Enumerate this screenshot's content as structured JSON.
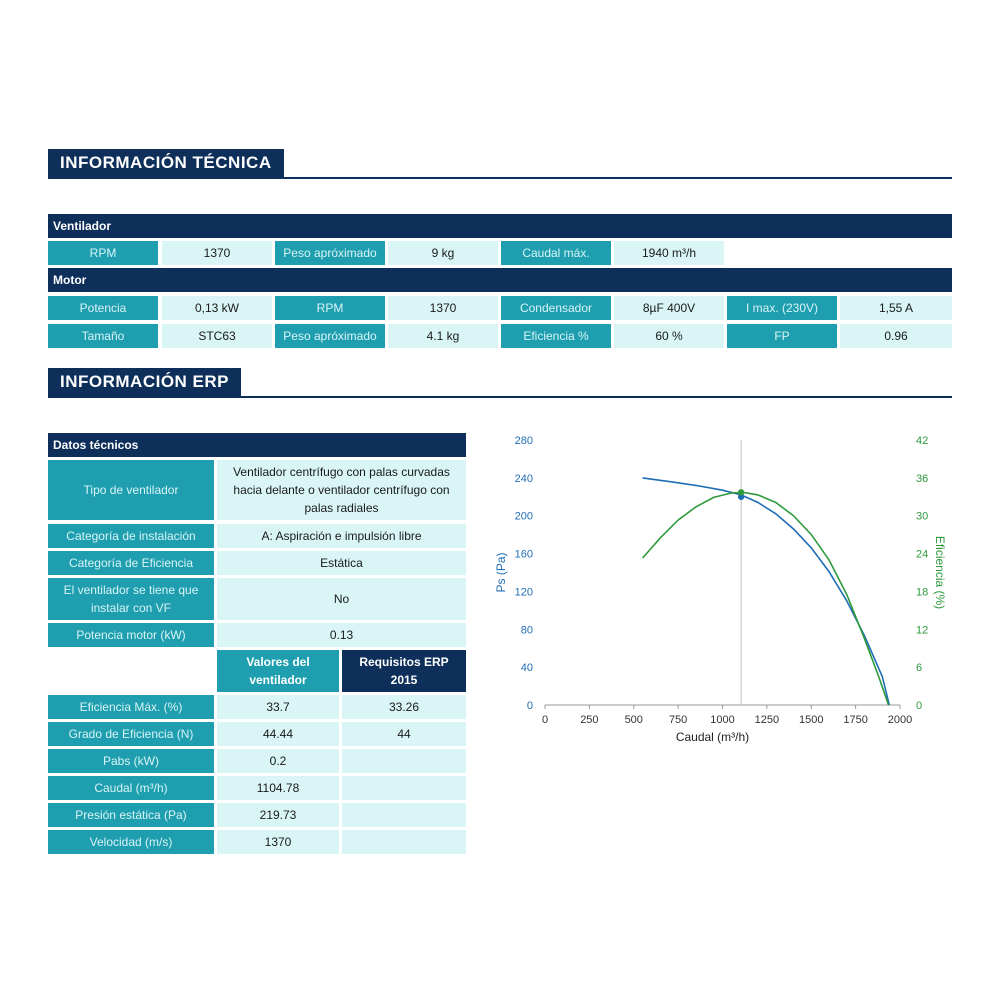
{
  "sections": {
    "tecnica": "INFORMACIÓN TÉCNICA",
    "erp": "INFORMACIÓN ERP"
  },
  "ventilador": {
    "title": "Ventilador",
    "cells": [
      "RPM",
      "1370",
      "Peso apróximado",
      "9 kg",
      "Caudal máx.",
      "1940 m³/h"
    ]
  },
  "motor": {
    "title": "Motor",
    "row1": [
      "Potencia",
      "0,13 kW",
      "RPM",
      "1370",
      "Condensador",
      "8µF 400V",
      "I max. (230V)",
      "1,55 A"
    ],
    "row2": [
      "Tamaño",
      "STC63",
      "Peso apróximado",
      "4.1 kg",
      "Eficiencia %",
      "60 %",
      "FP",
      "0.96"
    ]
  },
  "datos": {
    "title": "Datos técnicos",
    "rows": [
      {
        "label": "Tipo de ventilador",
        "value": "Ventilador centrífugo con palas curvadas hacia delante o ventilador centrífugo con palas radiales"
      },
      {
        "label": "Categoría de instalación",
        "value": "A: Aspiración e impulsión libre"
      },
      {
        "label": "Categoría de Eficiencia",
        "value": "Estática"
      },
      {
        "label": "El ventilador se tiene que instalar con VF",
        "value": "No"
      },
      {
        "label": "Potencia motor (kW)",
        "value": "0.13"
      }
    ],
    "col_valores": "Valores del ventilador",
    "col_requisitos": "Requisitos ERP 2015",
    "metrics": [
      {
        "label": "Eficiencia Máx. (%)",
        "valor": "33.7",
        "req": "33.26"
      },
      {
        "label": "Grado de Eficiencia (N)",
        "valor": "44.44",
        "req": "44"
      },
      {
        "label": "Pabs (kW)",
        "valor": "0.2",
        "req": ""
      },
      {
        "label": "Caudal (m³/h)",
        "valor": "1104.78",
        "req": ""
      },
      {
        "label": "Presión estática (Pa)",
        "valor": "219.73",
        "req": ""
      },
      {
        "label": "Velocidad (m/s)",
        "valor": "1370",
        "req": ""
      }
    ]
  },
  "chart_data": {
    "type": "line",
    "xlabel": "Caudal (m³/h)",
    "ylabel": "Ps (Pa)",
    "y2label": "Eficiencia (%)",
    "xlim": [
      0,
      2000
    ],
    "ylim": [
      0,
      280
    ],
    "y2lim": [
      0,
      42
    ],
    "x_ticks": [
      "0",
      "250",
      "500",
      "750",
      "1000",
      "1250",
      "1500",
      "1750",
      "2000"
    ],
    "y_ticks": [
      "0",
      "40",
      "80",
      "120",
      "160",
      "200",
      "240",
      "280"
    ],
    "y2_ticks": [
      "0",
      "6",
      "12",
      "18",
      "24",
      "30",
      "36",
      "42"
    ],
    "grid": false,
    "vertical_line_x": 1105,
    "colors": {
      "pressure": "#1f6db5",
      "efficiency": "#2e9a3c",
      "axis": "#999999"
    },
    "series": [
      {
        "axis": "left",
        "color": "#1f6db5",
        "points": [
          [
            550,
            240
          ],
          [
            700,
            236
          ],
          [
            850,
            232
          ],
          [
            1000,
            227
          ],
          [
            1105,
            222
          ],
          [
            1200,
            214
          ],
          [
            1300,
            202
          ],
          [
            1400,
            186
          ],
          [
            1500,
            166
          ],
          [
            1600,
            141
          ],
          [
            1700,
            110
          ],
          [
            1800,
            73
          ],
          [
            1900,
            30
          ],
          [
            1940,
            0
          ]
        ]
      },
      {
        "axis": "right",
        "color": "#2e9a3c",
        "points": [
          [
            550,
            23.3
          ],
          [
            650,
            26.5
          ],
          [
            750,
            29.3
          ],
          [
            850,
            31.4
          ],
          [
            950,
            32.9
          ],
          [
            1050,
            33.6
          ],
          [
            1120,
            33.7
          ],
          [
            1200,
            33.3
          ],
          [
            1300,
            32.1
          ],
          [
            1400,
            30.0
          ],
          [
            1500,
            27.0
          ],
          [
            1600,
            23.0
          ],
          [
            1700,
            17.5
          ],
          [
            1800,
            10.5
          ],
          [
            1880,
            4.5
          ],
          [
            1935,
            0
          ]
        ]
      }
    ],
    "markers": [
      {
        "axis": "left",
        "x": 1105,
        "y": 220,
        "color": "#1f6db5"
      },
      {
        "axis": "right",
        "x": 1105,
        "y": 33.7,
        "color": "#2e9a3c"
      }
    ]
  }
}
